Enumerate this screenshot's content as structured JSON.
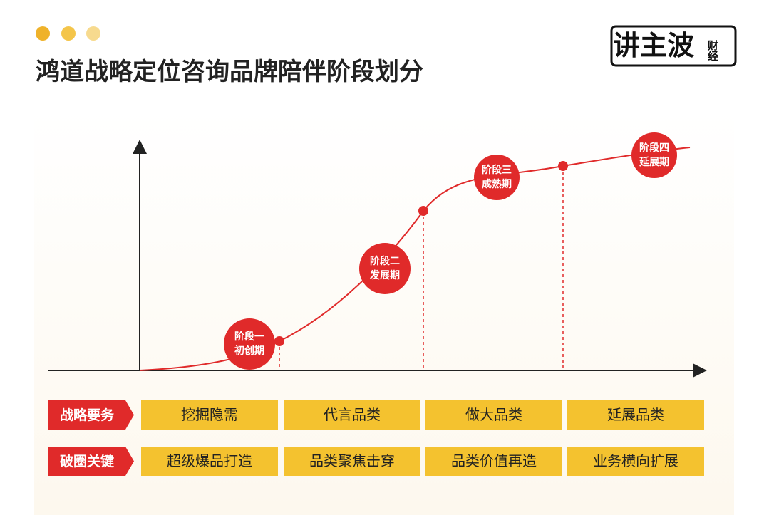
{
  "header": {
    "title": "鸿道战略定位咨询品牌陪伴阶段划分",
    "logo": "讲主波",
    "logo_sub": "财经"
  },
  "stages": [
    {
      "line1": "阶段一",
      "line2": "初创期"
    },
    {
      "line1": "阶段二",
      "line2": "发展期"
    },
    {
      "line1": "阶段三",
      "line2": "成熟期"
    },
    {
      "line1": "阶段四",
      "line2": "延展期"
    }
  ],
  "rows": [
    {
      "label": "战略要务",
      "cells": [
        "挖掘隐需",
        "代言品类",
        "做大品类",
        "延展品类"
      ]
    },
    {
      "label": "破圈关键",
      "cells": [
        "超级爆品打造",
        "品类聚焦击穿",
        "品类价值再造",
        "业务横向扩展"
      ]
    }
  ]
}
